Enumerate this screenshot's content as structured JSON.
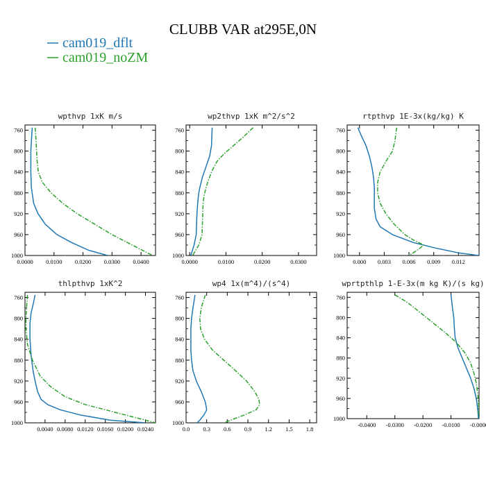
{
  "title": "CLUBB VAR at295E,0N",
  "legend": [
    {
      "name": "cam019_dflt",
      "color": "#1f77b4"
    },
    {
      "name": "cam019_noZM",
      "color": "#2ca02c"
    }
  ],
  "chart_data": [
    {
      "type": "line",
      "title": "wpthvp  1xK m/s",
      "xlim": [
        0.0,
        0.045
      ],
      "ylim": [
        1000,
        750
      ],
      "xticks": [
        0.0,
        0.01,
        0.02,
        0.03,
        0.04
      ],
      "xtick_labels": [
        "0.0000",
        "0.0100",
        "0.0200",
        "0.0300",
        "0.0400"
      ],
      "yticks": [
        760,
        800,
        840,
        880,
        920,
        960,
        1000
      ],
      "ytick_labels": [
        "760",
        "800",
        "840",
        "880",
        "920",
        "960",
        "1000"
      ],
      "series": [
        {
          "name": "cam019_dflt",
          "y": [
            755,
            800,
            840,
            870,
            900,
            920,
            940,
            960,
            975,
            990,
            1000
          ],
          "x": [
            0.0025,
            0.002,
            0.002,
            0.0022,
            0.003,
            0.0045,
            0.007,
            0.011,
            0.016,
            0.022,
            0.0285
          ]
        },
        {
          "name": "cam019_noZM",
          "y": [
            755,
            780,
            800,
            820,
            840,
            860,
            880,
            900,
            920,
            940,
            960,
            980,
            1000
          ],
          "x": [
            0.0035,
            0.0038,
            0.004,
            0.0042,
            0.0046,
            0.006,
            0.009,
            0.013,
            0.018,
            0.024,
            0.03,
            0.037,
            0.044
          ]
        }
      ]
    },
    {
      "type": "line",
      "title": "wp2thvp  1xK m^2/s^2",
      "xlim": [
        -0.001,
        0.035
      ],
      "ylim": [
        1000,
        750
      ],
      "xticks": [
        0.0,
        0.01,
        0.02,
        0.03
      ],
      "xtick_labels": [
        "0.0000",
        "0.0100",
        "0.0200",
        "0.0300"
      ],
      "yticks": [
        760,
        800,
        840,
        880,
        920,
        960,
        1000
      ],
      "ytick_labels": [
        "760",
        "800",
        "840",
        "880",
        "920",
        "960",
        "1000"
      ],
      "series": [
        {
          "name": "cam019_dflt",
          "y": [
            755,
            790,
            810,
            830,
            850,
            870,
            880,
            900,
            920,
            940,
            960,
            980,
            1000
          ],
          "x": [
            0.0062,
            0.006,
            0.0055,
            0.0045,
            0.0035,
            0.0028,
            0.0025,
            0.0022,
            0.002,
            0.0019,
            0.0018,
            0.0012,
            0.0003
          ]
        },
        {
          "name": "cam019_noZM",
          "y": [
            755,
            775,
            790,
            805,
            820,
            840,
            855,
            870,
            885,
            900,
            920,
            940,
            960,
            980,
            1000
          ],
          "x": [
            0.0175,
            0.0145,
            0.012,
            0.0095,
            0.0075,
            0.006,
            0.0052,
            0.0045,
            0.004,
            0.0037,
            0.0036,
            0.0035,
            0.0034,
            0.0025,
            0.0008
          ]
        }
      ]
    },
    {
      "type": "line",
      "title": "rtpthvp  1E-3x(kg/kg) K",
      "xlim": [
        -0.0015,
        0.0145
      ],
      "ylim": [
        1000,
        750
      ],
      "xticks": [
        0.0,
        0.003,
        0.006,
        0.009,
        0.012
      ],
      "xtick_labels": [
        "0.000",
        "0.003",
        "0.006",
        "0.009",
        "0.012"
      ],
      "yticks": [
        760,
        800,
        840,
        880,
        920,
        960,
        1000
      ],
      "ytick_labels": [
        "760",
        "800",
        "840",
        "880",
        "920",
        "960",
        "1000"
      ],
      "series": [
        {
          "name": "cam019_dflt",
          "y": [
            755,
            770,
            790,
            810,
            830,
            850,
            870,
            890,
            910,
            930,
            945,
            960,
            975,
            985,
            995,
            1000
          ],
          "x": [
            -0.0002,
            0.0002,
            0.0008,
            0.0012,
            0.0015,
            0.0017,
            0.0018,
            0.0018,
            0.0018,
            0.002,
            0.0025,
            0.004,
            0.0065,
            0.009,
            0.012,
            0.0145
          ]
        },
        {
          "name": "cam019_noZM",
          "y": [
            755,
            780,
            800,
            820,
            840,
            860,
            880,
            900,
            920,
            940,
            960,
            970,
            980,
            990,
            1000
          ],
          "x": [
            0.0045,
            0.0043,
            0.004,
            0.0032,
            0.0025,
            0.0022,
            0.0022,
            0.0025,
            0.0032,
            0.0042,
            0.0055,
            0.0065,
            0.0078,
            0.007,
            0.006
          ]
        }
      ]
    },
    {
      "type": "line",
      "title": "thlpthvp  1xK^2",
      "xlim": [
        0.0,
        0.026
      ],
      "ylim": [
        1000,
        750
      ],
      "xticks": [
        0.004,
        0.008,
        0.012,
        0.016,
        0.02,
        0.024
      ],
      "xtick_labels": [
        "0.0040",
        "0.0080",
        "0.0120",
        "0.0160",
        "0.0200",
        "0.0240"
      ],
      "yticks": [
        760,
        800,
        840,
        880,
        920,
        960,
        1000
      ],
      "ytick_labels": [
        "760",
        "800",
        "840",
        "880",
        "920",
        "960",
        "1000"
      ],
      "series": [
        {
          "name": "cam019_dflt",
          "y": [
            755,
            770,
            790,
            810,
            840,
            870,
            900,
            920,
            940,
            955,
            965,
            975,
            985,
            995,
            1000
          ],
          "x": [
            0.002,
            0.0017,
            0.0012,
            0.001,
            0.001,
            0.0012,
            0.0016,
            0.002,
            0.0025,
            0.0032,
            0.0045,
            0.007,
            0.011,
            0.017,
            0.024
          ]
        },
        {
          "name": "cam019_noZM",
          "y": [
            755,
            780,
            800,
            820,
            850,
            880,
            910,
            930,
            950,
            965,
            975,
            985,
            995,
            1000
          ],
          "x": [
            0.0005,
            0.0003,
            0.0002,
            0.0002,
            0.0005,
            0.0015,
            0.003,
            0.005,
            0.008,
            0.012,
            0.016,
            0.02,
            0.024,
            0.026
          ]
        }
      ]
    },
    {
      "type": "line",
      "title": "wp4  1x(m^4)/(s^4)",
      "xlim": [
        0.0,
        1.9
      ],
      "ylim": [
        1000,
        750
      ],
      "xticks": [
        0.0,
        0.3,
        0.6,
        0.9,
        1.2,
        1.5,
        1.8
      ],
      "xtick_labels": [
        "0.0",
        "0.3",
        "0.6",
        "0.9",
        "1.2",
        "1.5",
        "1.8"
      ],
      "yticks": [
        760,
        800,
        840,
        880,
        920,
        960,
        1000
      ],
      "ytick_labels": [
        "760",
        "800",
        "840",
        "880",
        "920",
        "960",
        "1000"
      ],
      "series": [
        {
          "name": "cam019_dflt",
          "y": [
            755,
            780,
            800,
            820,
            840,
            860,
            880,
            900,
            920,
            940,
            960,
            975,
            985,
            995,
            1000
          ],
          "x": [
            0.13,
            0.1,
            0.08,
            0.07,
            0.07,
            0.07,
            0.08,
            0.1,
            0.15,
            0.22,
            0.28,
            0.3,
            0.26,
            0.2,
            0.16
          ]
        },
        {
          "name": "cam019_noZM",
          "y": [
            755,
            780,
            800,
            820,
            840,
            860,
            880,
            900,
            920,
            940,
            955,
            965,
            975,
            985,
            995,
            1000
          ],
          "x": [
            0.28,
            0.22,
            0.2,
            0.21,
            0.27,
            0.38,
            0.55,
            0.72,
            0.88,
            1.0,
            1.06,
            1.07,
            1.02,
            0.85,
            0.65,
            0.55
          ]
        }
      ]
    },
    {
      "type": "line",
      "title": "wprtpthlp  1-E-3x(m kg K)/(s kg)",
      "xlim": [
        -0.047,
        0.0
      ],
      "ylim": [
        1000,
        750
      ],
      "xticks": [
        -0.04,
        -0.03,
        -0.02,
        -0.01,
        0.0
      ],
      "xtick_labels": [
        "-0.0400",
        "-0.0300",
        "-0.0200",
        "-0.0100",
        "-0.0000"
      ],
      "yticks": [
        760,
        800,
        840,
        880,
        920,
        960,
        1000
      ],
      "ytick_labels": [
        "760",
        "800",
        "840",
        "880",
        "920",
        "960",
        "1000"
      ],
      "series": [
        {
          "name": "cam019_dflt",
          "y": [
            755,
            780,
            800,
            820,
            840,
            860,
            880,
            900,
            920,
            940,
            960,
            980,
            1000
          ],
          "x": [
            -0.01,
            -0.0095,
            -0.009,
            -0.0088,
            -0.0085,
            -0.0075,
            -0.006,
            -0.0045,
            -0.003,
            -0.0018,
            -0.001,
            -0.0005,
            -0.0002
          ]
        },
        {
          "name": "cam019_noZM",
          "y": [
            755,
            770,
            790,
            810,
            830,
            850,
            870,
            890,
            910,
            930,
            950,
            970,
            990,
            1000
          ],
          "x": [
            -0.03,
            -0.0255,
            -0.021,
            -0.0165,
            -0.012,
            -0.008,
            -0.005,
            -0.003,
            -0.0018,
            -0.001,
            -0.0005,
            -0.0002,
            -0.0001,
            0.0
          ]
        }
      ]
    }
  ]
}
